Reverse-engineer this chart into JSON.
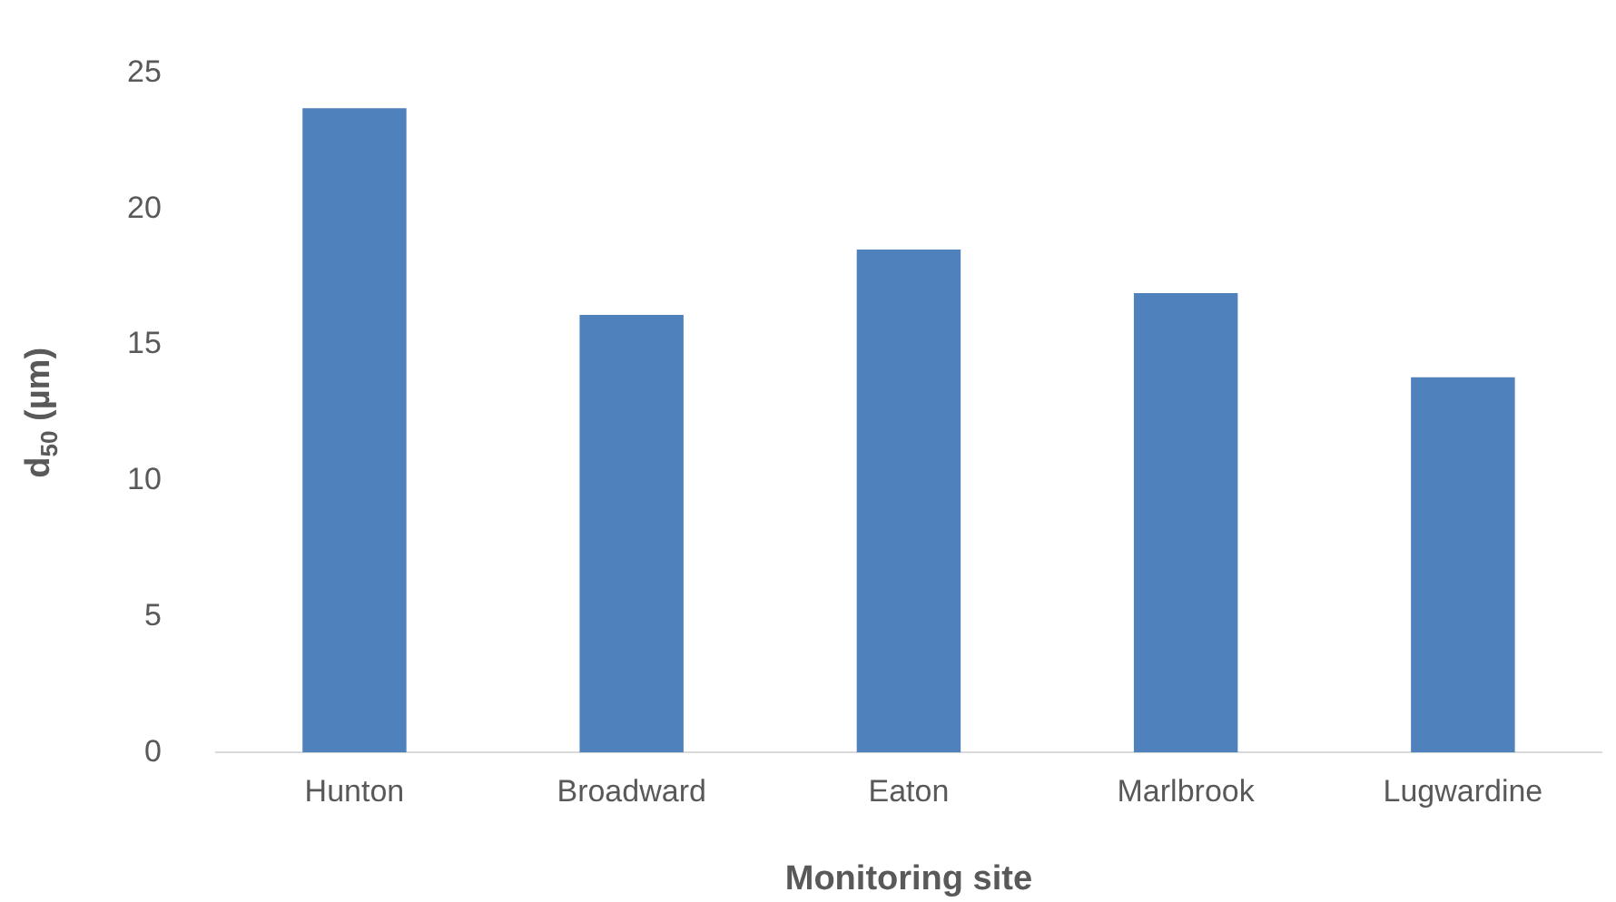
{
  "chart_data": {
    "type": "bar",
    "xlabel": "Monitoring site",
    "ylabel": "d$_{50}$ (µm)",
    "categories": [
      "Hunton",
      "Broadward",
      "Eaton",
      "Marlbrook",
      "Lugwardine"
    ],
    "values": [
      23.7,
      16.1,
      18.5,
      16.9,
      13.8
    ],
    "color": "#4f81bd",
    "ylim": [
      0,
      25
    ],
    "yticks": [
      0,
      5,
      10,
      15,
      20,
      25
    ],
    "grid": false
  }
}
